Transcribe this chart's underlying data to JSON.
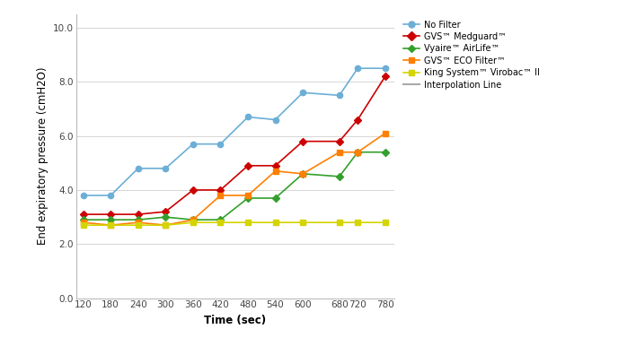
{
  "x": [
    120,
    180,
    240,
    300,
    360,
    420,
    480,
    540,
    600,
    680,
    720,
    780
  ],
  "no_filter": [
    3.8,
    3.8,
    4.8,
    4.8,
    5.7,
    5.7,
    6.7,
    6.6,
    7.6,
    7.5,
    8.5,
    8.5
  ],
  "gvs_medguard": [
    3.1,
    3.1,
    3.1,
    3.2,
    4.0,
    4.0,
    4.9,
    4.9,
    5.8,
    5.8,
    6.6,
    8.2
  ],
  "vyaire_airlife": [
    2.9,
    2.9,
    2.9,
    3.0,
    2.9,
    2.9,
    3.7,
    3.7,
    4.6,
    4.5,
    5.4,
    5.4
  ],
  "gvs_eco": [
    2.8,
    2.7,
    2.8,
    2.7,
    2.9,
    3.8,
    3.8,
    4.7,
    4.6,
    5.4,
    5.4,
    6.1
  ],
  "king_virobac": [
    2.7,
    2.7,
    2.7,
    2.7,
    2.8,
    2.8,
    2.8,
    2.8,
    2.8,
    2.8,
    2.8,
    2.8
  ],
  "no_filter_color": "#6baed6",
  "gvs_medguard_color": "#cc0000",
  "vyaire_airlife_color": "#33a02c",
  "gvs_eco_color": "#ff7f00",
  "king_virobac_color": "#d4d400",
  "interp_color": "#aaaaaa",
  "xlabel": "Time (sec)",
  "ylabel": "End expiratory pressure (cmH2O)",
  "ylim": [
    0.0,
    10.5
  ],
  "xlim": [
    105,
    800
  ],
  "yticks": [
    0.0,
    2.0,
    4.0,
    6.0,
    8.0,
    10.0
  ],
  "xticks": [
    120,
    180,
    240,
    300,
    360,
    420,
    480,
    540,
    600,
    680,
    720,
    780
  ],
  "legend_labels": [
    "No Filter",
    "GVS™ Medguard™",
    "Vyaire™ AirLife™",
    "GVS™ ECO Filter™",
    "King System™ Virobac™ II",
    "Interpolation Line"
  ],
  "figsize": [
    7.08,
    3.96
  ],
  "dpi": 100,
  "tick_fontsize": 7.5,
  "label_fontsize": 8.5,
  "legend_fontsize": 7.0
}
